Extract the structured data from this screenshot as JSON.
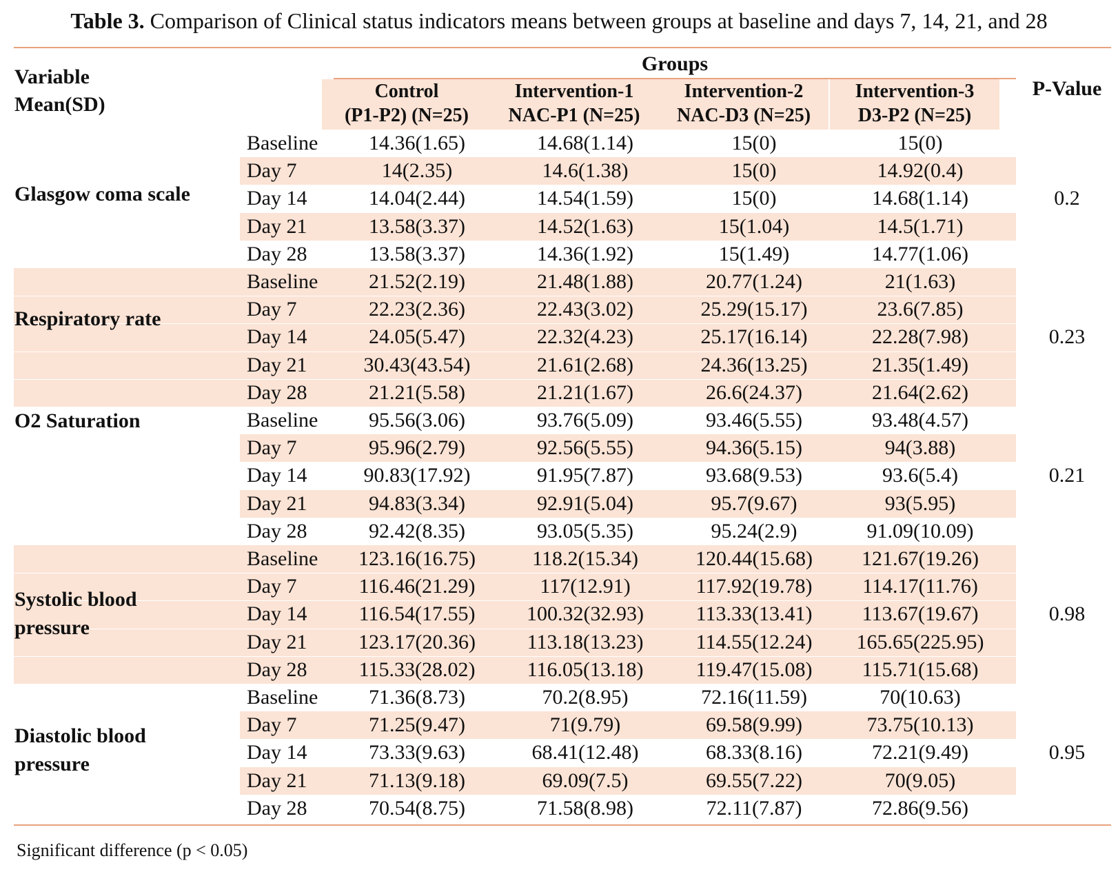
{
  "title": {
    "label": "Table 3.",
    "text": " Comparison of Clinical status indicators means between groups at baseline and days 7, 14, 21, and 28"
  },
  "header": {
    "variable_line1": "Variable",
    "variable_line2": "Mean(SD)",
    "groups": "Groups",
    "pvalue": "P-Value",
    "columns": [
      {
        "line1": "Control",
        "line2": "(P1-P2) (N=25)"
      },
      {
        "line1": "Intervention-1",
        "line2": "NAC-P1 (N=25)"
      },
      {
        "line1": "Intervention-2",
        "line2": "NAC-D3 (N=25)"
      },
      {
        "line1": "Intervention-3",
        "line2": "D3-P2 (N=25)"
      }
    ]
  },
  "blocks": [
    {
      "variable": "Glasgow coma scale",
      "pvalue": "0.2",
      "rows": [
        {
          "time": "Baseline",
          "values": [
            "14.36(1.65)",
            "14.68(1.14)",
            "15(0)",
            "15(0)"
          ]
        },
        {
          "time": "Day 7",
          "values": [
            "14(2.35)",
            "14.6(1.38)",
            "15(0)",
            "14.92(0.4)"
          ]
        },
        {
          "time": "Day 14",
          "values": [
            "14.04(2.44)",
            "14.54(1.59)",
            "15(0)",
            "14.68(1.14)"
          ]
        },
        {
          "time": "Day 21",
          "values": [
            "13.58(3.37)",
            "14.52(1.63)",
            "15(1.04)",
            "14.5(1.71)"
          ]
        },
        {
          "time": "Day 28",
          "values": [
            "13.58(3.37)",
            "14.36(1.92)",
            "15(1.49)",
            "14.77(1.06)"
          ]
        }
      ]
    },
    {
      "variable": "Respiratory rate",
      "pvalue": "0.23",
      "rows": [
        {
          "time": "Baseline",
          "values": [
            "21.52(2.19)",
            "21.48(1.88)",
            "20.77(1.24)",
            "21(1.63)"
          ]
        },
        {
          "time": "Day 7",
          "values": [
            "22.23(2.36)",
            "22.43(3.02)",
            "25.29(15.17)",
            "23.6(7.85)"
          ]
        },
        {
          "time": "Day 14",
          "values": [
            "24.05(5.47)",
            "22.32(4.23)",
            "25.17(16.14)",
            "22.28(7.98)"
          ]
        },
        {
          "time": "Day 21",
          "values": [
            "30.43(43.54)",
            "21.61(2.68)",
            "24.36(13.25)",
            "21.35(1.49)"
          ]
        },
        {
          "time": "Day 28",
          "values": [
            "21.21(5.58)",
            "21.21(1.67)",
            "26.6(24.37)",
            "21.64(2.62)"
          ]
        }
      ]
    },
    {
      "variable": "O2 Saturation",
      "pvalue": "0.21",
      "rows": [
        {
          "time": "Baseline",
          "values": [
            "95.56(3.06)",
            "93.76(5.09)",
            "93.46(5.55)",
            "93.48(4.57)"
          ]
        },
        {
          "time": "Day 7",
          "values": [
            "95.96(2.79)",
            "92.56(5.55)",
            "94.36(5.15)",
            "94(3.88)"
          ]
        },
        {
          "time": "Day 14",
          "values": [
            "90.83(17.92)",
            "91.95(7.87)",
            "93.68(9.53)",
            "93.6(5.4)"
          ]
        },
        {
          "time": "Day 21",
          "values": [
            "94.83(3.34)",
            "92.91(5.04)",
            "95.7(9.67)",
            "93(5.95)"
          ]
        },
        {
          "time": "Day 28",
          "values": [
            "92.42(8.35)",
            "93.05(5.35)",
            "95.24(2.9)",
            "91.09(10.09)"
          ]
        }
      ]
    },
    {
      "variable_line1": "Systolic blood",
      "variable_line2": "pressure",
      "pvalue": "0.98",
      "rows": [
        {
          "time": "Baseline",
          "values": [
            "123.16(16.75)",
            "118.2(15.34)",
            "120.44(15.68)",
            "121.67(19.26)"
          ]
        },
        {
          "time": "Day 7",
          "values": [
            "116.46(21.29)",
            "117(12.91)",
            "117.92(19.78)",
            "114.17(11.76)"
          ]
        },
        {
          "time": "Day 14",
          "values": [
            "116.54(17.55)",
            "100.32(32.93)",
            "113.33(13.41)",
            "113.67(19.67)"
          ]
        },
        {
          "time": "Day 21",
          "values": [
            "123.17(20.36)",
            "113.18(13.23)",
            "114.55(12.24)",
            "165.65(225.95)"
          ]
        },
        {
          "time": "Day 28",
          "values": [
            "115.33(28.02)",
            "116.05(13.18)",
            "119.47(15.08)",
            "115.71(15.68)"
          ]
        }
      ]
    },
    {
      "variable_line1": "Diastolic blood",
      "variable_line2": "pressure",
      "pvalue": "0.95",
      "rows": [
        {
          "time": "Baseline",
          "values": [
            "71.36(8.73)",
            "70.2(8.95)",
            "72.16(11.59)",
            "70(10.63)"
          ]
        },
        {
          "time": "Day 7",
          "values": [
            "71.25(9.47)",
            "71(9.79)",
            "69.58(9.99)",
            "73.75(10.13)"
          ]
        },
        {
          "time": "Day 14",
          "values": [
            "73.33(9.63)",
            "68.41(12.48)",
            "68.33(8.16)",
            "72.21(9.49)"
          ]
        },
        {
          "time": "Day 21",
          "values": [
            "71.13(9.18)",
            "69.09(7.5)",
            "69.55(7.22)",
            "70(9.05)"
          ]
        },
        {
          "time": "Day 28",
          "values": [
            "70.54(8.75)",
            "71.58(8.98)",
            "72.11(7.87)",
            "72.86(9.56)"
          ]
        }
      ]
    }
  ],
  "footnote": "Significant difference (p < 0.05)",
  "colors": {
    "rule": "#e8a27e",
    "shade": "#fbe3d5"
  }
}
